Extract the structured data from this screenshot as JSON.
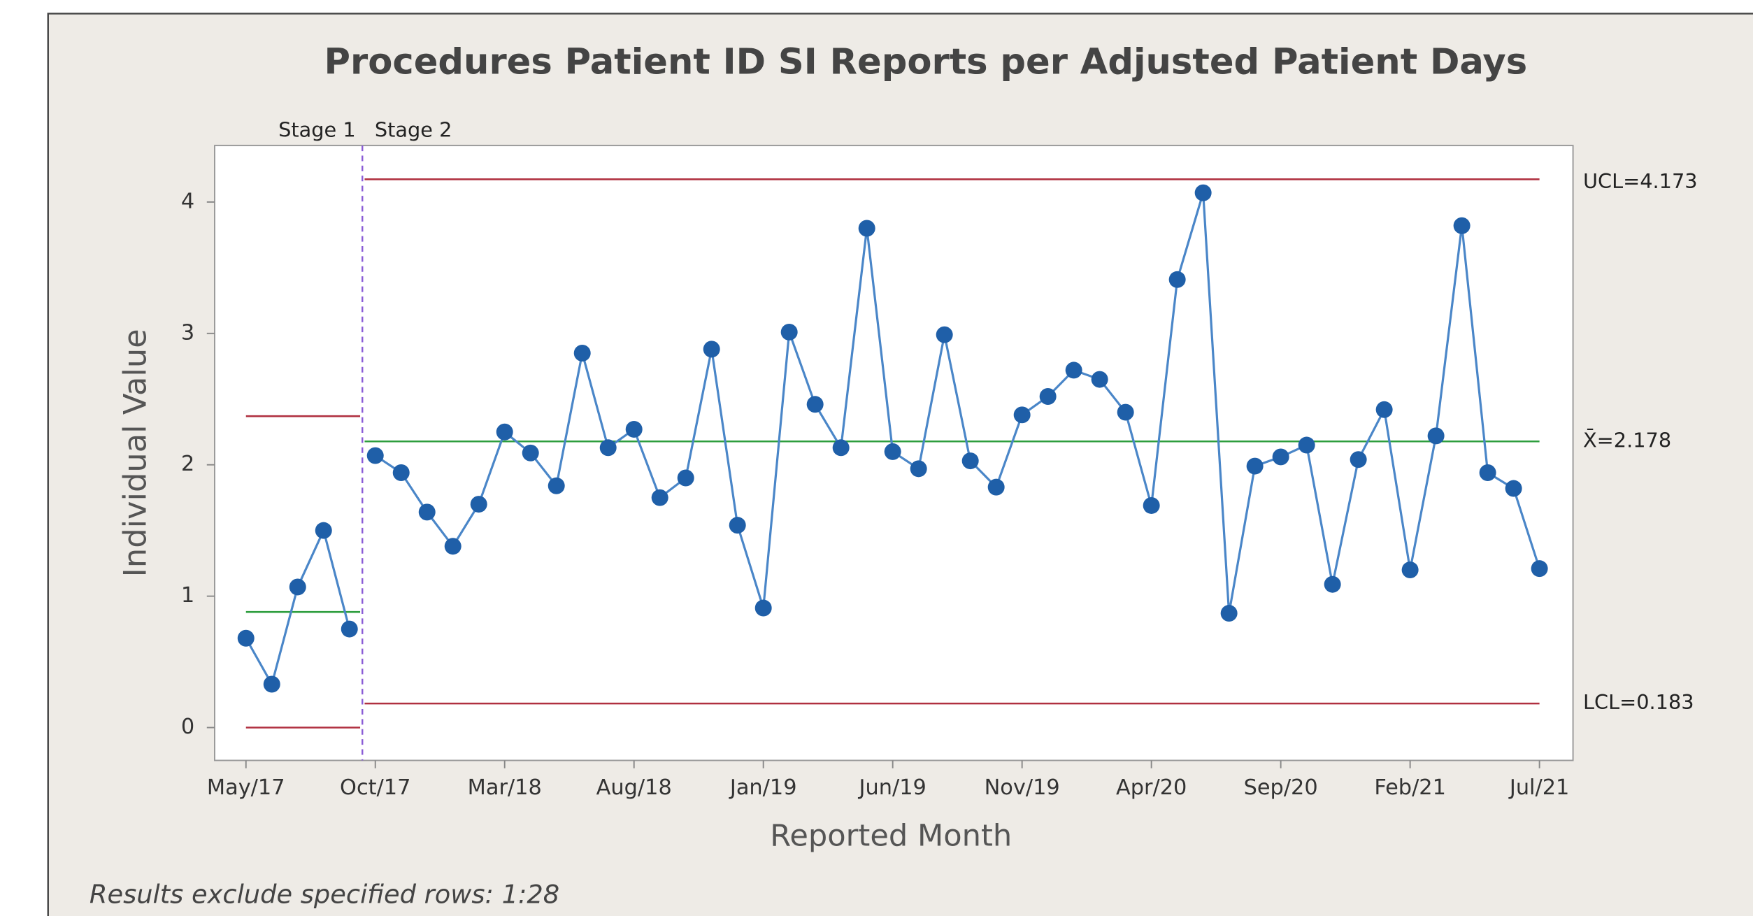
{
  "chart_data": {
    "type": "control",
    "title": "Procedures Patient ID SI Reports per Adjusted Patient Days",
    "x_label": "Reported Month",
    "y_label": "Individual Value",
    "footnote": "Results exclude specified rows: 1:28",
    "categories": [
      "May/17",
      null,
      null,
      null,
      null,
      "Oct/17",
      null,
      null,
      null,
      null,
      "Mar/18",
      null,
      null,
      null,
      null,
      "Aug/18",
      null,
      null,
      null,
      null,
      "Jan/19",
      null,
      null,
      null,
      null,
      "Jun/19",
      null,
      null,
      null,
      null,
      "Nov/19",
      null,
      null,
      null,
      null,
      "Apr/20",
      null,
      null,
      null,
      null,
      "Sep/20",
      null,
      null,
      null,
      null,
      "Feb/21",
      null,
      null,
      null,
      null,
      "Jul/21"
    ],
    "ylim": [
      -0.25,
      4.43
    ],
    "yticks": [
      0,
      1,
      2,
      3,
      4
    ],
    "line_color": "#4a86c8",
    "marker_color": "#1f5fa8",
    "limit_color": "#b03040",
    "center_color": "#2e9e3e",
    "stage_line_color": "#8a5cd6",
    "series": [
      {
        "name": "Stage 1",
        "values": [
          0.68,
          0.33,
          1.07,
          1.5,
          0.75,
          null,
          null,
          null,
          null,
          null,
          null,
          null,
          null,
          null,
          null,
          null,
          null,
          null,
          null,
          null,
          null,
          null,
          null,
          null,
          null,
          null,
          null,
          null,
          null,
          null,
          null,
          null,
          null,
          null,
          null,
          null,
          null,
          null,
          null,
          null,
          null,
          null,
          null,
          null,
          null,
          null,
          null,
          null,
          null,
          null,
          null
        ],
        "ucl": 2.37,
        "center": 0.88,
        "lcl": 0
      },
      {
        "name": "Stage 2",
        "values": [
          null,
          null,
          null,
          null,
          null,
          2.07,
          1.94,
          1.64,
          1.38,
          1.7,
          2.25,
          2.09,
          1.84,
          2.85,
          2.13,
          2.27,
          1.75,
          1.9,
          2.88,
          1.54,
          0.91,
          3.01,
          2.46,
          2.13,
          3.8,
          2.1,
          1.97,
          2.99,
          2.03,
          1.83,
          2.38,
          2.52,
          2.72,
          2.65,
          2.4,
          1.69,
          3.41,
          4.07,
          0.87,
          1.99,
          2.06,
          2.15,
          1.09,
          2.04,
          2.42,
          1.2,
          2.22,
          3.82,
          1.94,
          1.82,
          1.21
        ],
        "ucl": {
          "value": 4.173,
          "label": "UCL=4.173"
        },
        "center": {
          "value": 2.178,
          "label": "X̄=2.178"
        },
        "lcl": {
          "value": 0.183,
          "label": "LCL=0.183"
        }
      }
    ]
  }
}
